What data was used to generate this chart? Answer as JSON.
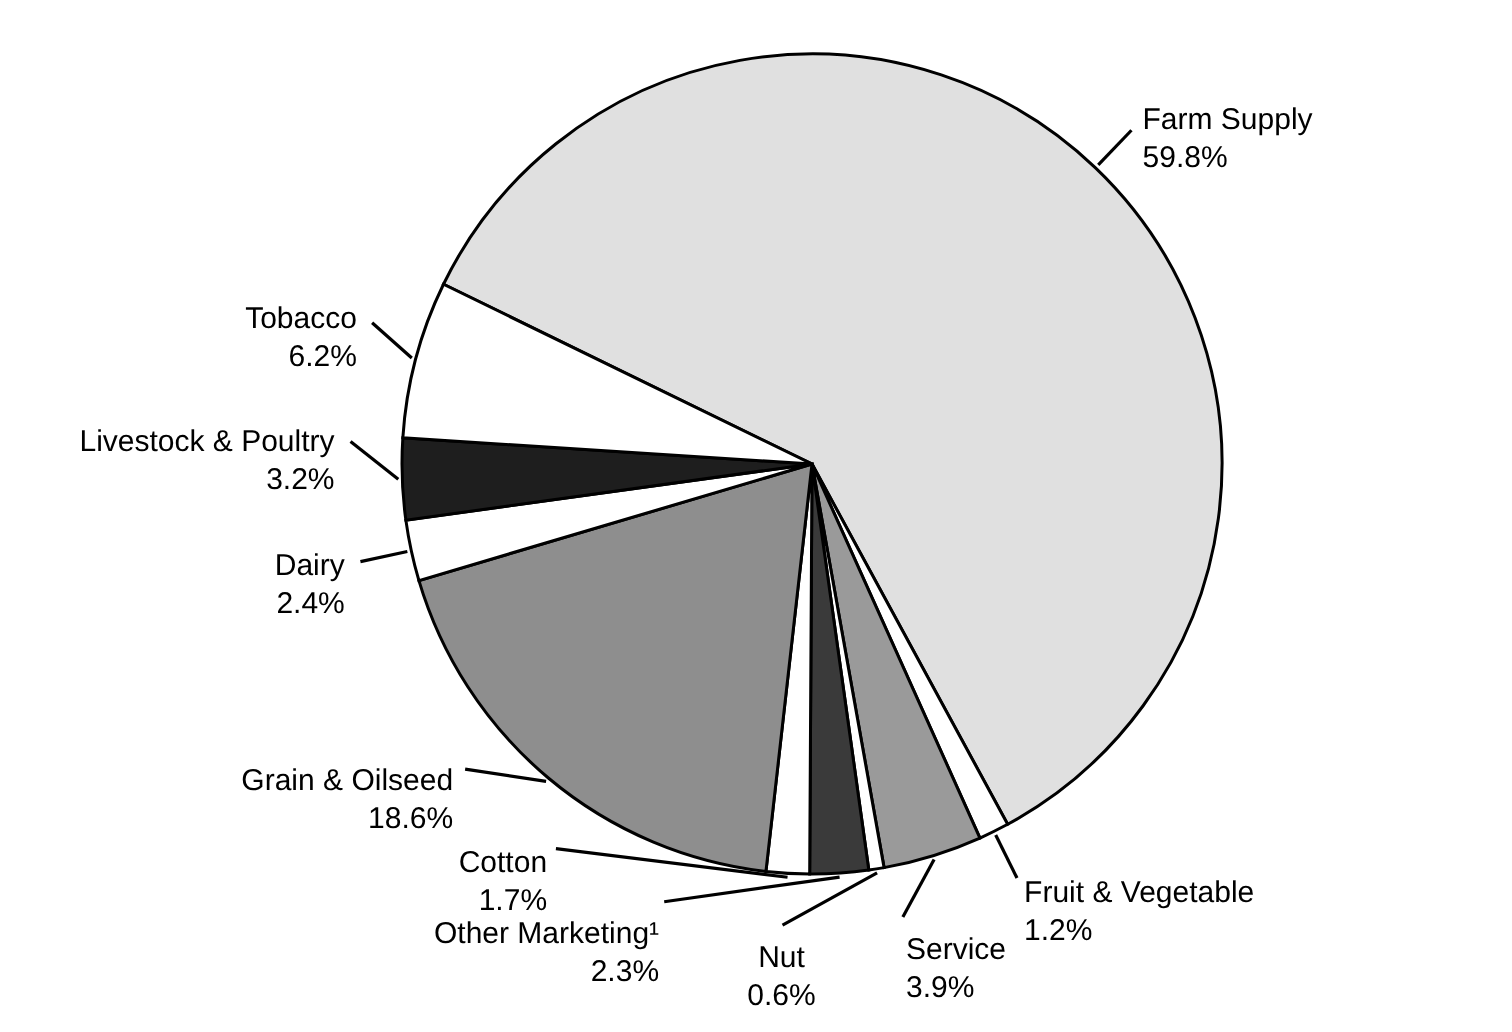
{
  "chart_data": {
    "type": "pie",
    "categories": [
      "Farm Supply",
      "Fruit & Vegetable",
      "Service",
      "Nut",
      "Other Marketing¹",
      "Cotton",
      "Grain & Oilseed",
      "Dairy",
      "Livestock & Poultry",
      "Tobacco"
    ],
    "values": [
      59.8,
      1.2,
      3.9,
      0.6,
      2.3,
      1.7,
      18.6,
      2.4,
      3.2,
      6.2
    ],
    "value_labels": [
      "59.8%",
      "1.2%",
      "3.9%",
      "0.6%",
      "2.3%",
      "1.7%",
      "18.6%",
      "2.4%",
      "3.2%",
      "6.2%"
    ],
    "colors": [
      "#e0e0e0",
      "#ffffff",
      "#9a9a9a",
      "#ffffff",
      "#3a3a3a",
      "#ffffff",
      "#8e8e8e",
      "#ffffff",
      "#1e1e1e",
      "#ffffff"
    ]
  }
}
